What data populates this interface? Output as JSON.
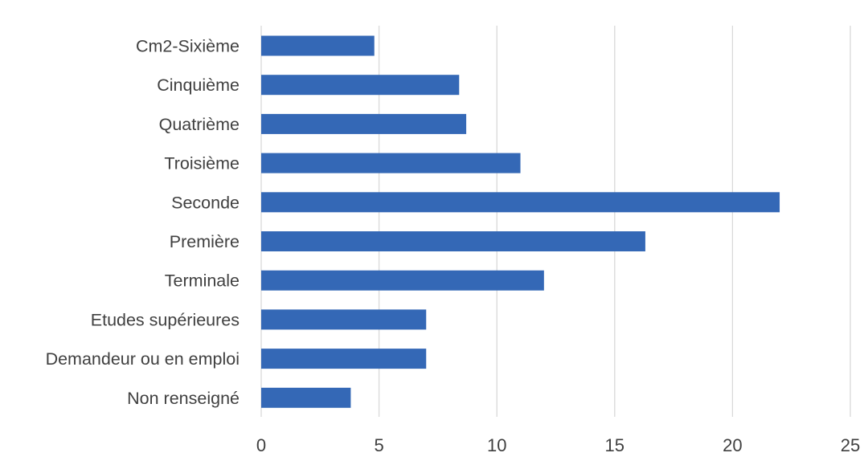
{
  "chart_data": {
    "type": "bar",
    "orientation": "horizontal",
    "title": "",
    "xlabel": "",
    "ylabel": "",
    "categories": [
      "Cm2-Sixième",
      "Cinquième",
      "Quatrième",
      "Troisième",
      "Seconde",
      "Première",
      "Terminale",
      "Etudes supérieures",
      "Demandeur ou en emploi",
      "Non renseigné"
    ],
    "values": [
      4.8,
      8.4,
      8.7,
      11.0,
      22.0,
      16.3,
      12.0,
      7.0,
      7.0,
      3.8
    ],
    "xlim": [
      0,
      25
    ],
    "xticks": [
      "0",
      "5",
      "10",
      "15",
      "20",
      "25"
    ],
    "grid": "vertical",
    "legend": "none",
    "colors": {
      "bar": "#3468b6",
      "grid": "#d9d9d9",
      "text": "#404040"
    }
  }
}
